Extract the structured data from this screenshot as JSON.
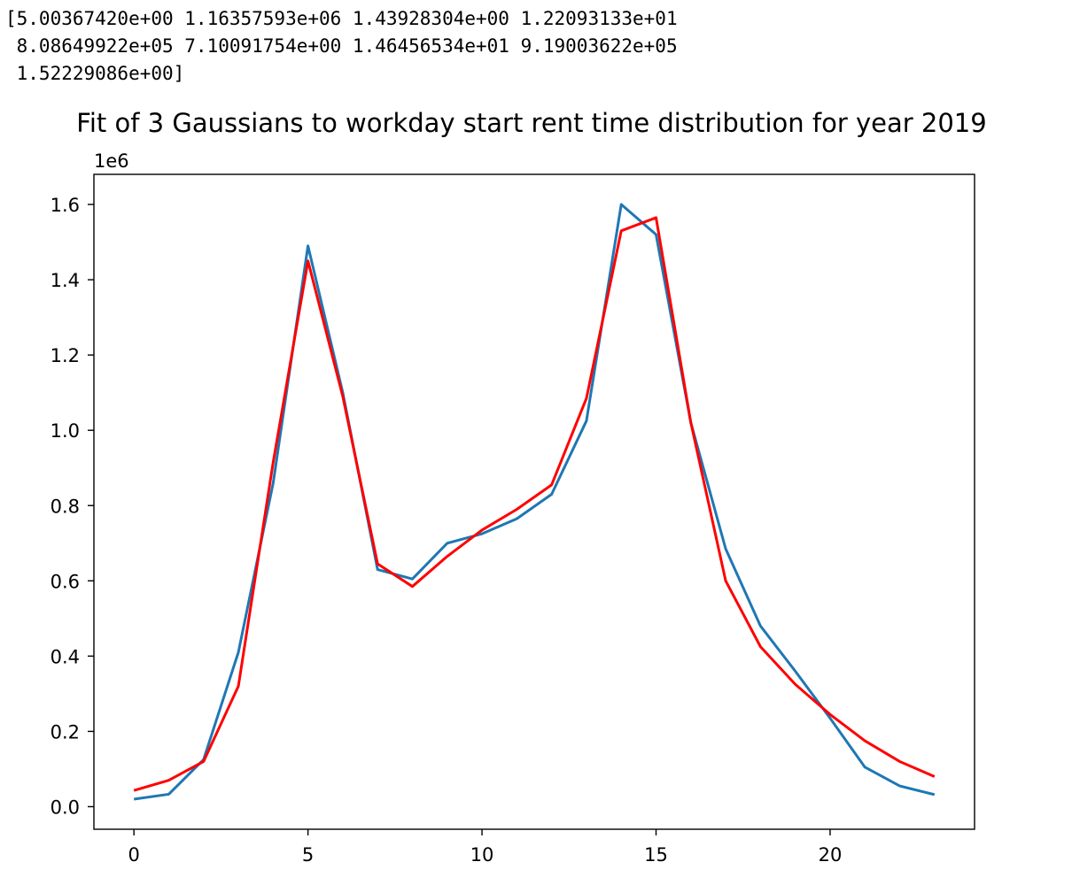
{
  "output": {
    "lines": [
      "[5.00367420e+00 1.16357593e+06 1.43928304e+00 1.22093133e+01",
      " 8.08649922e+05 7.10091754e+00 1.46456534e+01 9.19003622e+05",
      " 1.52229086e+00]"
    ]
  },
  "chart_data": {
    "type": "line",
    "title": "Fit of 3 Gaussians to workday start rent time distribution for year 2019",
    "xlabel": "",
    "ylabel": "",
    "y_offset_label": "1e6",
    "xlim": [
      -1.15,
      24.15
    ],
    "ylim": [
      -0.06,
      1.68
    ],
    "x_ticks": [
      0,
      5,
      10,
      15,
      20
    ],
    "x_tick_labels": [
      "0",
      "5",
      "10",
      "15",
      "20"
    ],
    "y_ticks": [
      0.0,
      0.2,
      0.4,
      0.6,
      0.8,
      1.0,
      1.2,
      1.4,
      1.6
    ],
    "y_tick_labels": [
      "0.0",
      "0.2",
      "0.4",
      "0.6",
      "0.8",
      "1.0",
      "1.2",
      "1.4",
      "1.6"
    ],
    "grid": false,
    "x": [
      0,
      1,
      2,
      3,
      4,
      5,
      6,
      7,
      8,
      9,
      10,
      11,
      12,
      13,
      14,
      15,
      16,
      17,
      18,
      19,
      20,
      21,
      22,
      23
    ],
    "series": [
      {
        "color": "#1f77b4",
        "values": [
          0.02,
          0.033,
          0.125,
          0.41,
          0.86,
          1.49,
          1.1,
          0.63,
          0.605,
          0.7,
          0.725,
          0.765,
          0.83,
          1.025,
          1.6,
          1.52,
          1.02,
          0.685,
          0.48,
          0.36,
          0.235,
          0.105,
          0.055,
          0.032
        ]
      },
      {
        "color": "#ff0000",
        "values": [
          0.043,
          0.07,
          0.12,
          0.32,
          0.915,
          1.45,
          1.09,
          0.645,
          0.585,
          0.665,
          0.735,
          0.79,
          0.855,
          1.085,
          1.53,
          1.565,
          1.02,
          0.6,
          0.425,
          0.325,
          0.245,
          0.175,
          0.12,
          0.08
        ]
      }
    ],
    "axes_color": "#000000",
    "background": "#ffffff"
  }
}
